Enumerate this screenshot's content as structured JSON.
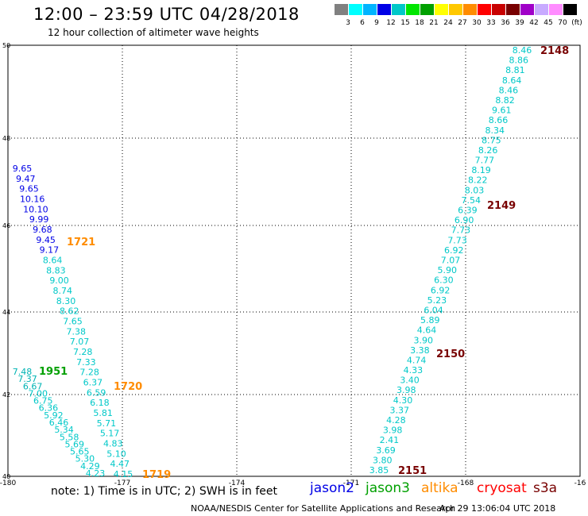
{
  "header": {
    "title": "12:00 – 23:59 UTC 04/28/2018",
    "subtitle": "12 hour collection of altimeter wave heights"
  },
  "colorbar": {
    "colors": [
      "#808080",
      "#00ffff",
      "#00b4ff",
      "#0000e6",
      "#00c8c8",
      "#00e600",
      "#00a000",
      "#ffff00",
      "#ffc800",
      "#ff8c00",
      "#ff0000",
      "#c80000",
      "#780000",
      "#a000c8",
      "#c8aaff",
      "#ff8cff",
      "#000000"
    ],
    "labels": [
      "3",
      "6",
      "9",
      "12",
      "15",
      "18",
      "21",
      "24",
      "27",
      "30",
      "33",
      "36",
      "39",
      "42",
      "45",
      "70",
      "(ft)"
    ]
  },
  "axes": {
    "lon_range": [
      -180,
      -165
    ],
    "lat_range": [
      40,
      50
    ],
    "x_ticks": [
      "-180",
      "-177",
      "-174",
      "-171",
      "-168",
      "-16"
    ],
    "y_ticks": [
      "40",
      "42",
      "44",
      "46",
      "48",
      "50"
    ]
  },
  "tracks": [
    {
      "label": "2148",
      "color": "#780000"
    },
    {
      "label": "2149",
      "color": "#780000"
    },
    {
      "label": "2150",
      "color": "#780000"
    },
    {
      "label": "2151",
      "color": "#780000"
    },
    {
      "label": "1721",
      "color": "#ff8c00"
    },
    {
      "label": "1720",
      "color": "#ff8c00"
    },
    {
      "label": "1719",
      "color": "#ff8c00"
    },
    {
      "label": "1951",
      "color": "#00a000"
    }
  ],
  "swh": {
    "east_labels": [
      "8.46",
      "8.86",
      "8.81",
      "8.64",
      "8.46",
      "8.82",
      "9.61",
      "8.66",
      "8.34",
      "8.75",
      "8.26",
      "7.77",
      "8.19",
      "8.22",
      "8.03",
      "7.54",
      "6.39",
      "6.90",
      "7.73",
      "7.73",
      "6.92",
      "7.07",
      "5.90",
      "6.30",
      "6.92",
      "5.23",
      "6.04",
      "5.89",
      "4.64",
      "3.90",
      "3.38",
      "4.74",
      "4.33",
      "3.40",
      "3.98",
      "4.30",
      "3.37",
      "4.28",
      "3.98",
      "2.41",
      "3.69",
      "3.80",
      "3.85"
    ],
    "west_labels": [
      "9.65",
      "9.47",
      "9.65",
      "10.16",
      "10.10",
      "9.99",
      "9.68",
      "9.45",
      "9.17",
      "8.64",
      "8.83",
      "9.00",
      "8.74",
      "8.30",
      "8.62",
      "7.65",
      "7.38",
      "7.07",
      "7.28",
      "7.33",
      "7.28",
      "6.37",
      "6.59",
      "6.18",
      "5.81",
      "5.71",
      "5.17",
      "4.83",
      "5.10",
      "4.47",
      "4.15"
    ],
    "southwest_labels": [
      "7.48",
      "7.37",
      "6.67",
      "7.00",
      "6.75",
      "6.36",
      "5.92",
      "6.46",
      "5.34",
      "5.58",
      "5.69",
      "5.65",
      "5.30",
      "4.29",
      "4.23"
    ]
  },
  "footer": {
    "note": "note:  1) Time is in UTC;  2) SWH is in feet",
    "satellites": [
      {
        "name": "jason2",
        "color": "#0000e6"
      },
      {
        "name": "jason3",
        "color": "#00a000"
      },
      {
        "name": "altika",
        "color": "#ff8c00"
      },
      {
        "name": "cryosat",
        "color": "#ff0000"
      },
      {
        "name": "s3a",
        "color": "#780000"
      }
    ],
    "credit": "NOAA/NESDIS Center for Satellite Applications and Research",
    "timestamp": "Apr 29 13:06:04 UTC 2018"
  }
}
